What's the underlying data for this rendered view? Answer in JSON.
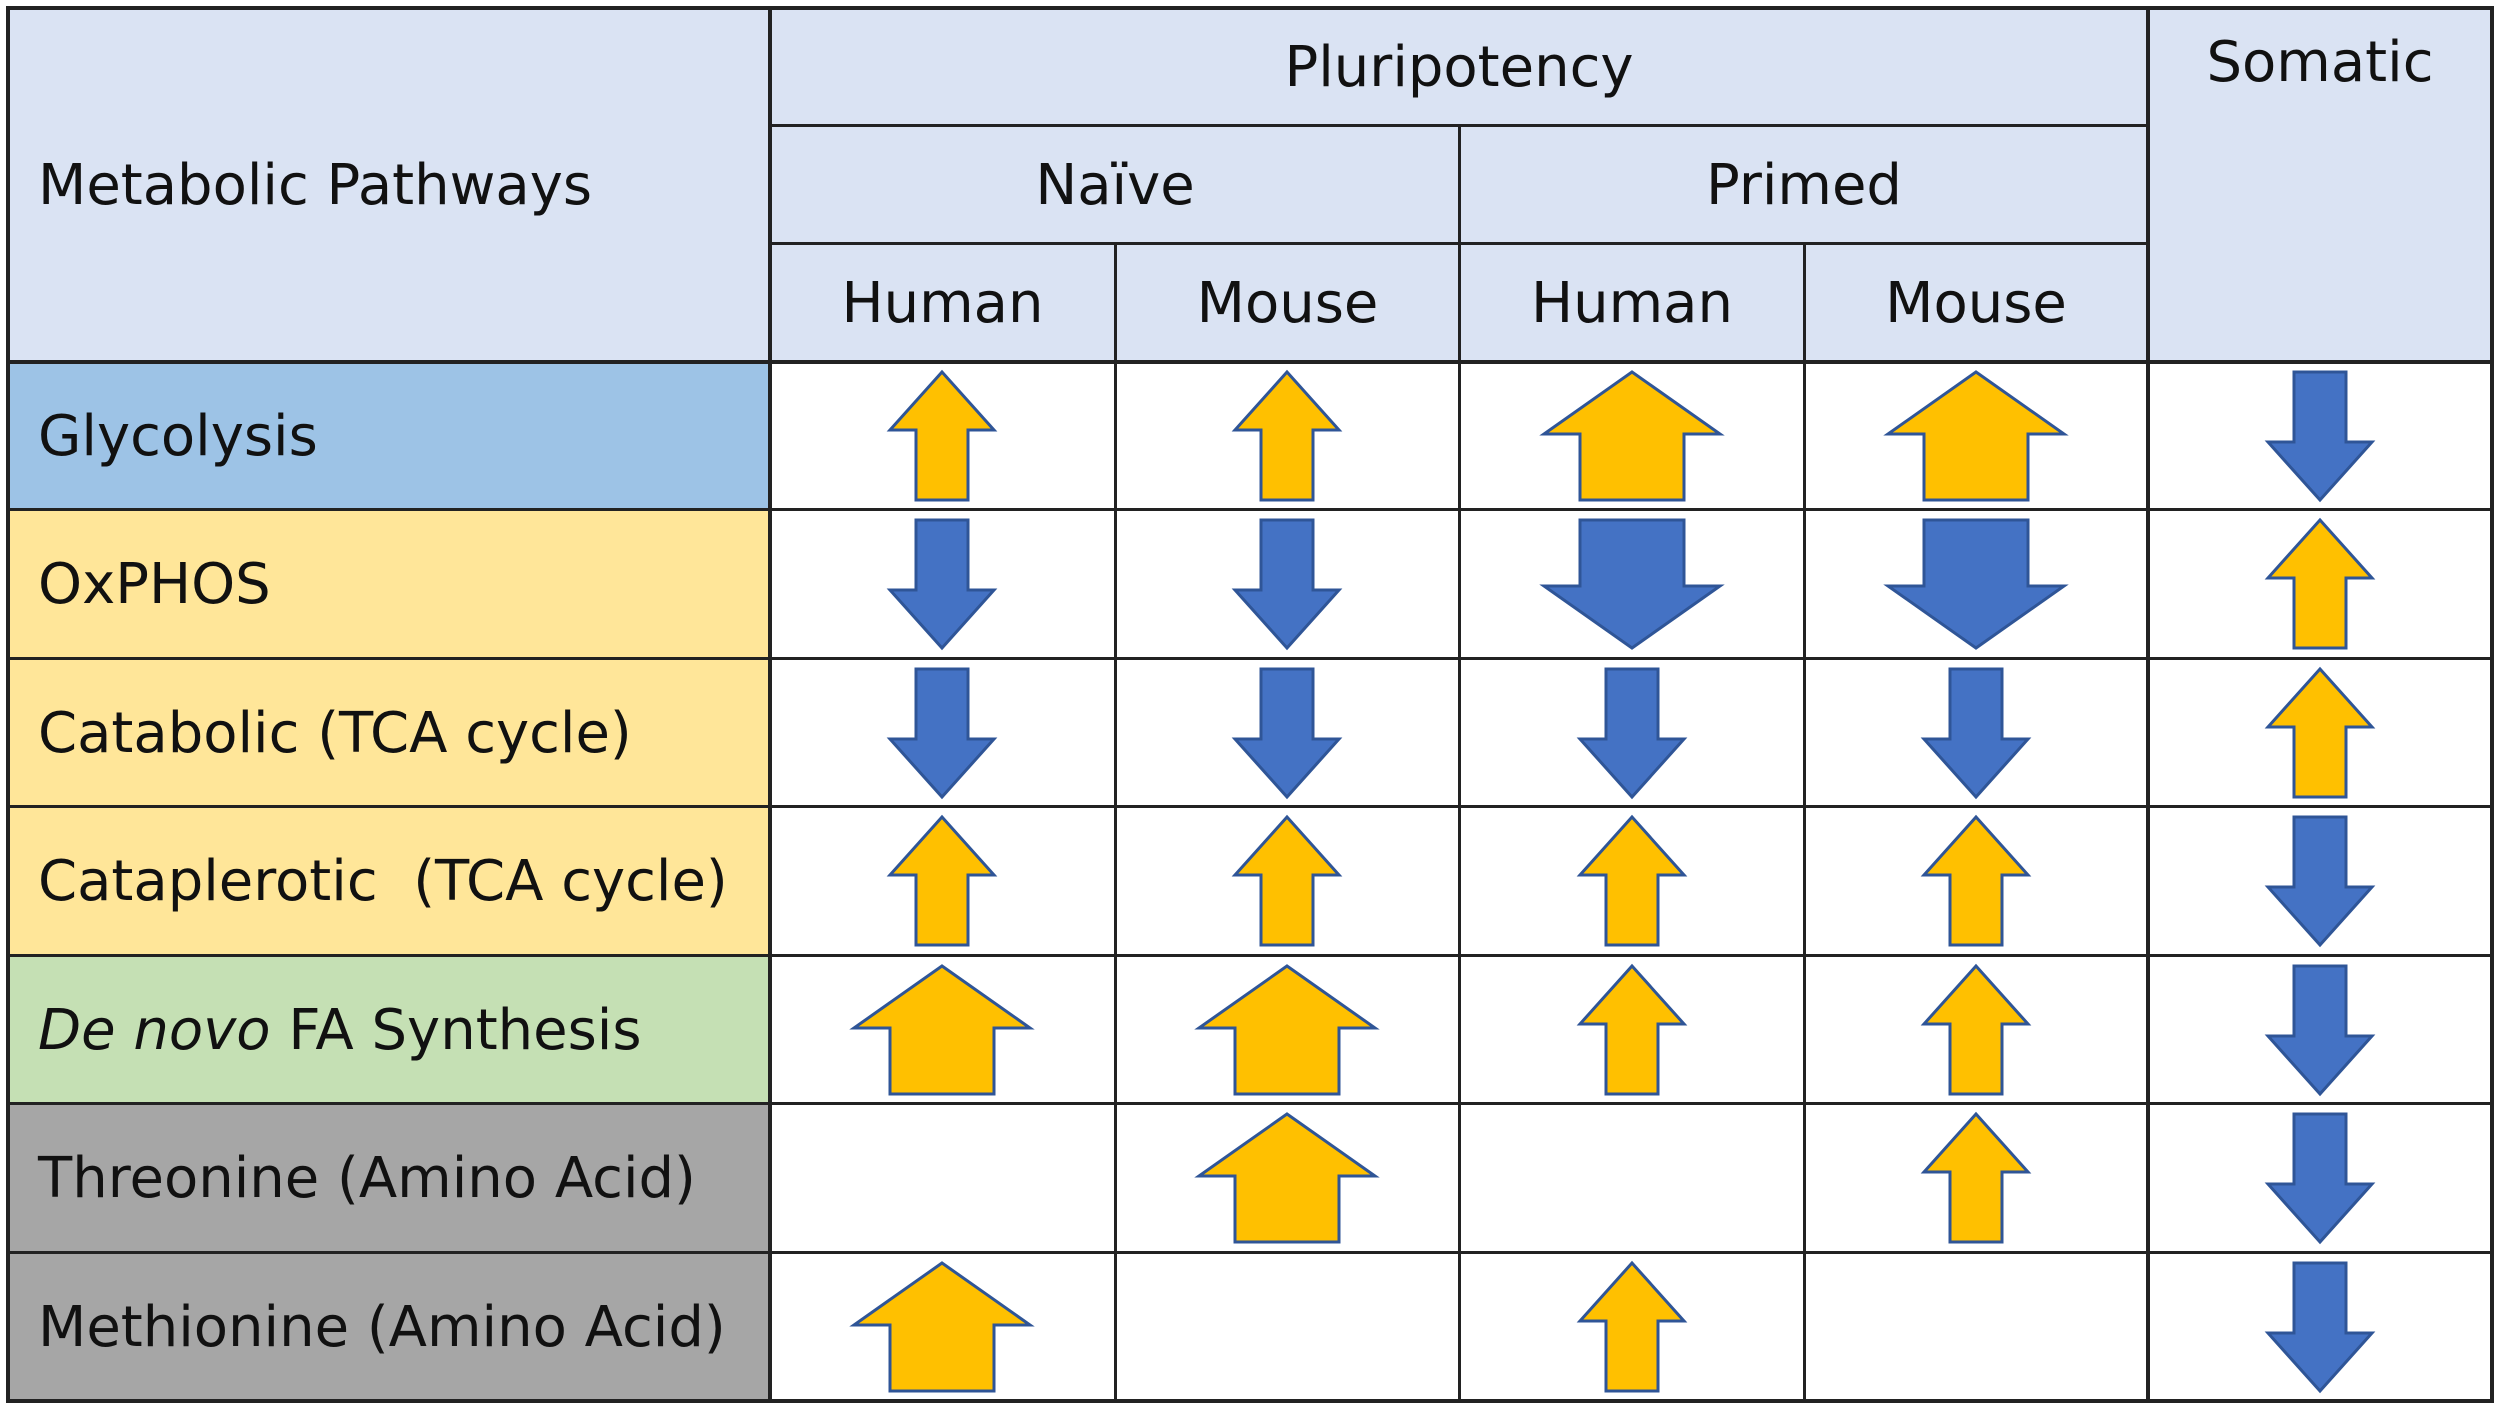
{
  "colors": {
    "header_bg": "#dae3f3",
    "up_arrow": "#ffc000",
    "down_arrow": "#4472c4",
    "arrow_outline": "#2f5597",
    "row_glycolysis": "#9dc3e6",
    "row_tca": "#ffe699",
    "row_fa": "#c5e0b4",
    "row_amino": "#a6a6a6"
  },
  "header": {
    "pathways": "Metabolic Pathways",
    "pluripotency": "Pluripotency",
    "somatic": "Somatic",
    "naive": "Naïve",
    "primed": "Primed",
    "naive_human": "Human",
    "naive_mouse": "Mouse",
    "primed_human": "Human",
    "primed_mouse": "Mouse"
  },
  "rows": [
    {
      "label": "Glycolysis",
      "label_italic": "",
      "label_rest": "",
      "bg": "row_glycolysis",
      "cells": [
        {
          "dir": "up",
          "size": "small"
        },
        {
          "dir": "up",
          "size": "small"
        },
        {
          "dir": "up",
          "size": "large"
        },
        {
          "dir": "up",
          "size": "large"
        },
        {
          "dir": "down",
          "size": "small"
        }
      ]
    },
    {
      "label": "OxPHOS",
      "label_italic": "",
      "label_rest": "",
      "bg": "row_tca",
      "cells": [
        {
          "dir": "down",
          "size": "small"
        },
        {
          "dir": "down",
          "size": "small"
        },
        {
          "dir": "down",
          "size": "large"
        },
        {
          "dir": "down",
          "size": "large"
        },
        {
          "dir": "up",
          "size": "small"
        }
      ]
    },
    {
      "label": "Catabolic (TCA cycle)",
      "label_italic": "",
      "label_rest": "",
      "bg": "row_tca",
      "cells": [
        {
          "dir": "down",
          "size": "small"
        },
        {
          "dir": "down",
          "size": "small"
        },
        {
          "dir": "down",
          "size": "small"
        },
        {
          "dir": "down",
          "size": "small"
        },
        {
          "dir": "up",
          "size": "small"
        }
      ]
    },
    {
      "label": "Cataplerotic  (TCA cycle)",
      "label_italic": "",
      "label_rest": "",
      "bg": "row_tca",
      "cells": [
        {
          "dir": "up",
          "size": "small"
        },
        {
          "dir": "up",
          "size": "small"
        },
        {
          "dir": "up",
          "size": "small"
        },
        {
          "dir": "up",
          "size": "small"
        },
        {
          "dir": "down",
          "size": "small"
        }
      ]
    },
    {
      "label": "",
      "label_italic": "De novo",
      "label_rest": " FA Synthesis",
      "bg": "row_fa",
      "cells": [
        {
          "dir": "up",
          "size": "large"
        },
        {
          "dir": "up",
          "size": "large"
        },
        {
          "dir": "up",
          "size": "small"
        },
        {
          "dir": "up",
          "size": "small"
        },
        {
          "dir": "down",
          "size": "small"
        }
      ]
    },
    {
      "label": "Threonine (Amino Acid)",
      "label_italic": "",
      "label_rest": "",
      "bg": "row_amino",
      "cells": [
        null,
        {
          "dir": "up",
          "size": "large"
        },
        null,
        {
          "dir": "up",
          "size": "small"
        },
        {
          "dir": "down",
          "size": "small"
        }
      ]
    },
    {
      "label": "Methionine (Amino Acid)",
      "label_italic": "",
      "label_rest": "",
      "bg": "row_amino",
      "cells": [
        {
          "dir": "up",
          "size": "large"
        },
        null,
        {
          "dir": "up",
          "size": "small"
        },
        null,
        {
          "dir": "down",
          "size": "small"
        }
      ]
    }
  ]
}
